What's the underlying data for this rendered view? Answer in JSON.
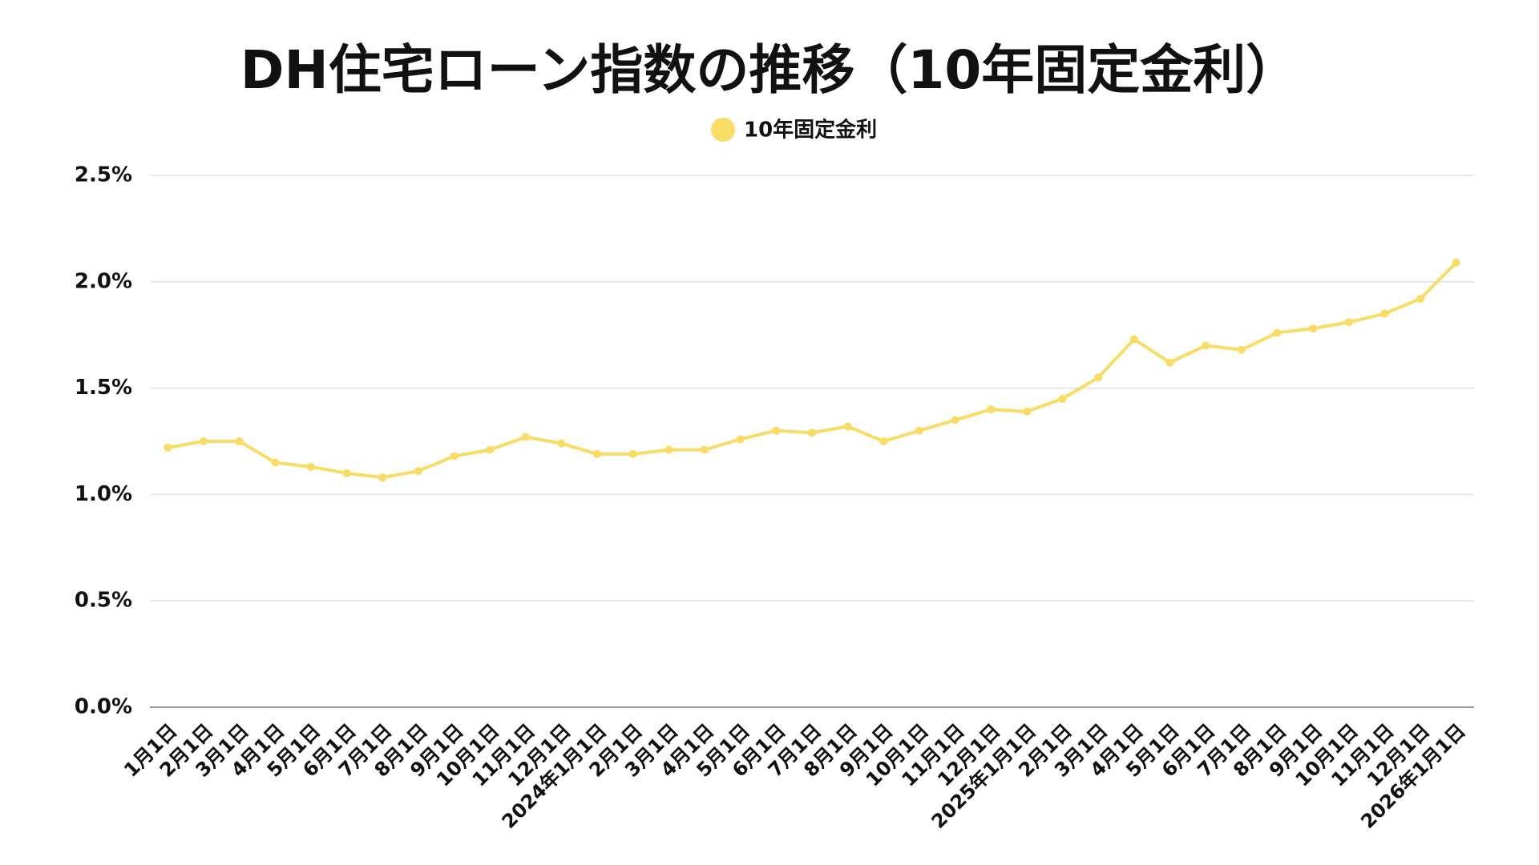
{
  "chart_data": {
    "type": "line",
    "title": "DH住宅ローン指数の推移（10年固定金利）",
    "categories": [
      "1月1日",
      "2月1日",
      "3月1日",
      "4月1日",
      "5月1日",
      "6月1日",
      "7月1日",
      "8月1日",
      "9月1日",
      "10月1日",
      "11月1日",
      "12月1日",
      "2024年1月1日",
      "2月1日",
      "3月1日",
      "4月1日",
      "5月1日",
      "6月1日",
      "7月1日",
      "8月1日",
      "9月1日",
      "10月1日",
      "11月1日",
      "12月1日",
      "2025年1月1日",
      "2月1日",
      "3月1日",
      "4月1日",
      "5月1日",
      "6月1日",
      "7月1日",
      "8月1日",
      "9月1日",
      "10月1日",
      "11月1日",
      "12月1日",
      "2026年1月1日"
    ],
    "series": [
      {
        "name": "10年固定金利",
        "color": "#f8dc63",
        "values": [
          1.22,
          1.25,
          1.25,
          1.15,
          1.13,
          1.1,
          1.08,
          1.11,
          1.18,
          1.21,
          1.27,
          1.24,
          1.19,
          1.19,
          1.21,
          1.21,
          1.26,
          1.3,
          1.29,
          1.32,
          1.25,
          1.3,
          1.35,
          1.4,
          1.39,
          1.45,
          1.55,
          1.73,
          1.62,
          1.7,
          1.68,
          1.76,
          1.78,
          1.81,
          1.85,
          1.92,
          2.09
        ]
      }
    ],
    "ylim": [
      0,
      2.5
    ],
    "yticks": [
      {
        "value": 0,
        "label": "0.0%"
      },
      {
        "value": 0.5,
        "label": "0.5%"
      },
      {
        "value": 1,
        "label": "1.0%"
      },
      {
        "value": 1.5,
        "label": "1.5%"
      },
      {
        "value": 2,
        "label": "2.0%"
      },
      {
        "value": 2.5,
        "label": "2.5%"
      }
    ],
    "grid": true
  }
}
